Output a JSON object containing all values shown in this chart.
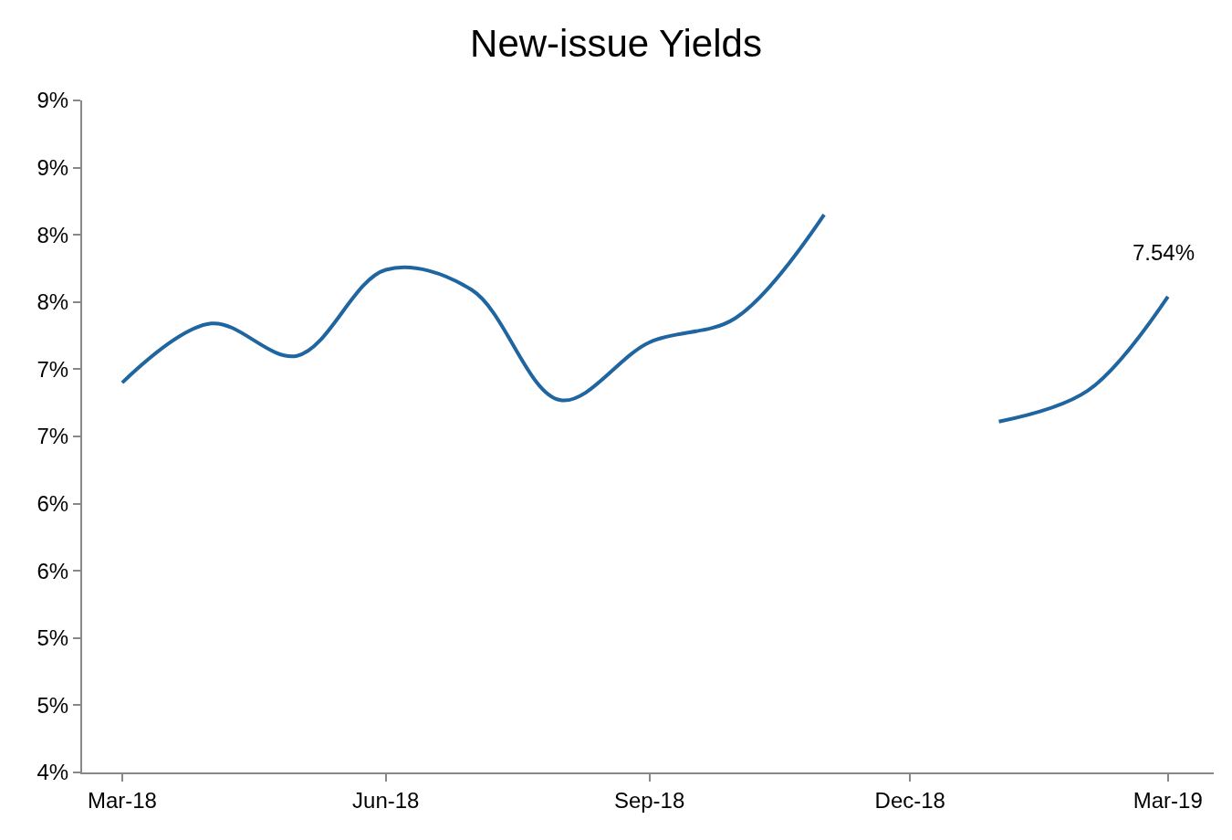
{
  "chart_data": {
    "type": "line",
    "title": "New-issue Yields",
    "x": [
      "2018-03-15",
      "2018-04-15",
      "2018-05-15",
      "2018-06-15",
      "2018-07-15",
      "2018-08-15",
      "2018-09-15",
      "2018-10-15",
      "2018-11-15",
      "2018-12-15",
      "2019-01-15",
      "2019-02-15",
      "2019-03-15"
    ],
    "series": [
      {
        "color": "#1f65a0",
        "values": [
          6.9,
          7.34,
          7.1,
          7.74,
          7.59,
          6.77,
          7.2,
          7.38,
          8.15,
          null,
          6.61,
          6.84,
          7.54
        ]
      }
    ],
    "annotations": [
      {
        "text": "7.54%",
        "x": "2019-03-15",
        "y": 7.54
      }
    ],
    "ylim": [
      4,
      9
    ],
    "yticks": [
      {
        "value": 4,
        "label": "4%"
      },
      {
        "value": 4.5,
        "label": "5%"
      },
      {
        "value": 5,
        "label": "5%"
      },
      {
        "value": 5.5,
        "label": "6%"
      },
      {
        "value": 6,
        "label": "6%"
      },
      {
        "value": 6.5,
        "label": "7%"
      },
      {
        "value": 7,
        "label": "7%"
      },
      {
        "value": 7.5,
        "label": "8%"
      },
      {
        "value": 8,
        "label": "8%"
      },
      {
        "value": 8.5,
        "label": "9%"
      },
      {
        "value": 9,
        "label": "9%"
      }
    ],
    "xlim": [
      "2018-03-01",
      "2019-03-31"
    ],
    "xticks": [
      {
        "value": "2018-03-15",
        "label": "Mar-18"
      },
      {
        "value": "2018-06-15",
        "label": "Jun-18"
      },
      {
        "value": "2018-09-15",
        "label": "Sep-18"
      },
      {
        "value": "2018-12-15",
        "label": "Dec-18"
      },
      {
        "value": "2019-03-15",
        "label": "Mar-19"
      }
    ],
    "legend": false,
    "marker": "none",
    "line_style": "solid"
  }
}
